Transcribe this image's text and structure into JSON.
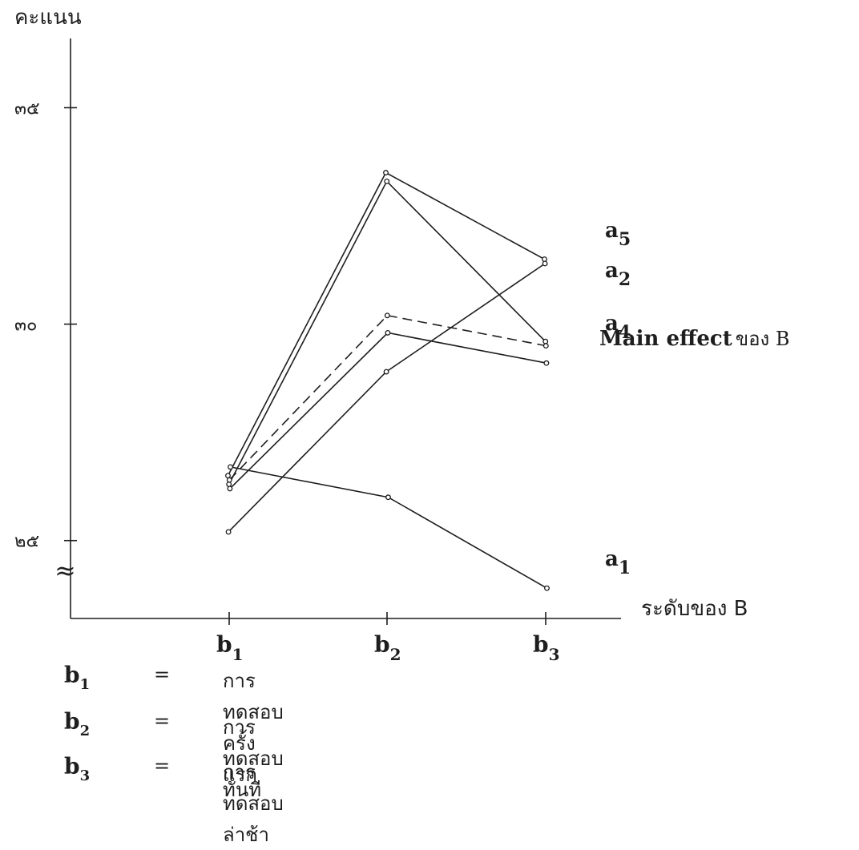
{
  "chart_data": {
    "type": "line",
    "ylabel": "คะแนน",
    "xlabel": "ระดับของ B",
    "categories": [
      "b1",
      "b2",
      "b3"
    ],
    "category_display": [
      {
        "base": "b",
        "sub": "1"
      },
      {
        "base": "b",
        "sub": "2"
      },
      {
        "base": "b",
        "sub": "3"
      }
    ],
    "y_ticks": [
      {
        "value": 25,
        "label": "๒๕"
      },
      {
        "value": 30,
        "label": "๓๐"
      },
      {
        "value": 35,
        "label": "๓๕"
      }
    ],
    "ylim": [
      23.2,
      36.6
    ],
    "axis_break_symbol": "≈",
    "series": [
      {
        "name": "a5",
        "label": {
          "base": "a",
          "sub": "5"
        },
        "values": [
          26.5,
          33.5,
          31.5
        ],
        "style": "solid"
      },
      {
        "name": "a2",
        "label": {
          "base": "a",
          "sub": "2"
        },
        "values": [
          25.2,
          28.9,
          31.4
        ],
        "style": "solid"
      },
      {
        "name": "a4",
        "label": {
          "base": "a",
          "sub": "4"
        },
        "values": [
          26.3,
          33.3,
          29.6
        ],
        "style": "solid"
      },
      {
        "name": "Main effect ของ B",
        "label": {
          "base": "Main effect",
          "sub": "",
          "suffix": "ของ   B"
        },
        "values": [
          26.4,
          30.2,
          29.5
        ],
        "style": "dashed"
      },
      {
        "name": "",
        "label": null,
        "values": [
          26.2,
          29.8,
          29.1
        ],
        "style": "solid"
      },
      {
        "name": "a1",
        "label": {
          "base": "a",
          "sub": "1"
        },
        "values": [
          26.7,
          26.0,
          23.9
        ],
        "style": "solid"
      }
    ],
    "legend": [
      {
        "symbol": "b",
        "sub": "1",
        "eq": "=",
        "text": "การทดสอบครั้งแรก"
      },
      {
        "symbol": "b",
        "sub": "2",
        "eq": "=",
        "text": "การทดสอบทันที"
      },
      {
        "symbol": "b",
        "sub": "3",
        "eq": "=",
        "text": "การทดสอบล่าช้า"
      }
    ],
    "grid": false,
    "colors": {
      "ink": "#1e1e1e",
      "background": "#ffffff"
    }
  }
}
